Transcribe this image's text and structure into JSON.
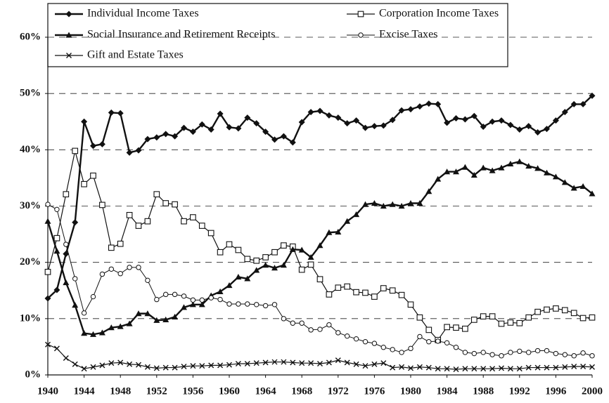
{
  "chart_data": {
    "type": "line",
    "x": [
      1940,
      1941,
      1942,
      1943,
      1944,
      1945,
      1946,
      1947,
      1948,
      1949,
      1950,
      1951,
      1952,
      1953,
      1954,
      1955,
      1956,
      1957,
      1958,
      1959,
      1960,
      1961,
      1962,
      1963,
      1964,
      1965,
      1966,
      1967,
      1968,
      1969,
      1970,
      1971,
      1972,
      1973,
      1974,
      1975,
      1976,
      1977,
      1978,
      1979,
      1980,
      1981,
      1982,
      1983,
      1984,
      1985,
      1986,
      1987,
      1988,
      1989,
      1990,
      1991,
      1992,
      1993,
      1994,
      1995,
      1996,
      1997,
      1998,
      1999,
      2000
    ],
    "xlim": [
      1940,
      2000
    ],
    "xticks": [
      1940,
      1944,
      1948,
      1952,
      1956,
      1960,
      1964,
      1968,
      1972,
      1976,
      1980,
      1984,
      1988,
      1992,
      1996,
      2000
    ],
    "ylim": [
      0,
      60
    ],
    "yticks": [
      {
        "value": 0,
        "label": "0%"
      },
      {
        "value": 10,
        "label": "10%"
      },
      {
        "value": 20,
        "label": "20%"
      },
      {
        "value": 30,
        "label": "30%"
      },
      {
        "value": 40,
        "label": "40%"
      },
      {
        "value": 50,
        "label": "50%"
      },
      {
        "value": 60,
        "label": "60%"
      }
    ],
    "grid": true,
    "series": [
      {
        "name": "Individual Income Taxes",
        "color": "#111111",
        "marker": "diamond",
        "values": [
          13.6,
          15.1,
          21.5,
          27.1,
          45.0,
          40.7,
          41.0,
          46.6,
          46.5,
          39.5,
          39.9,
          41.9,
          42.2,
          42.8,
          42.4,
          43.9,
          43.2,
          44.5,
          43.6,
          46.4,
          44.0,
          43.8,
          45.7,
          44.7,
          43.2,
          41.8,
          42.4,
          41.3,
          44.9,
          46.7,
          46.9,
          46.1,
          45.7,
          44.7,
          45.2,
          43.9,
          44.2,
          44.3,
          45.3,
          47.0,
          47.2,
          47.7,
          48.2,
          48.1,
          44.8,
          45.6,
          45.4,
          46.0,
          44.1,
          45.0,
          45.2,
          44.4,
          43.6,
          44.2,
          43.1,
          43.7,
          45.2,
          46.7,
          48.1,
          48.1,
          49.6
        ]
      },
      {
        "name": "Corporation Income Taxes",
        "color": "#111111",
        "marker": "square-open",
        "values": [
          18.3,
          24.3,
          32.1,
          39.8,
          33.9,
          35.4,
          30.2,
          22.6,
          23.3,
          28.4,
          26.5,
          27.3,
          32.1,
          30.5,
          30.3,
          27.3,
          28.0,
          26.5,
          25.2,
          21.8,
          23.2,
          22.2,
          20.6,
          20.3,
          20.9,
          21.8,
          23.0,
          22.8,
          18.7,
          19.6,
          17.0,
          14.3,
          15.5,
          15.7,
          14.7,
          14.6,
          13.9,
          15.4,
          15.0,
          14.2,
          12.5,
          10.2,
          8.0,
          6.2,
          8.5,
          8.4,
          8.2,
          9.8,
          10.4,
          10.4,
          9.1,
          9.3,
          9.2,
          10.2,
          11.2,
          11.6,
          11.8,
          11.5,
          11.0,
          10.1,
          10.2
        ]
      },
      {
        "name": "Social Insurance and Retirement Receipts",
        "color": "#111111",
        "marker": "triangle",
        "values": [
          27.3,
          22.0,
          16.4,
          12.4,
          7.4,
          7.2,
          7.5,
          8.4,
          8.6,
          9.1,
          10.9,
          10.9,
          9.7,
          9.8,
          10.3,
          12.0,
          12.5,
          12.5,
          14.1,
          14.8,
          15.9,
          17.4,
          17.1,
          18.6,
          19.5,
          19.0,
          19.5,
          22.3,
          22.2,
          20.9,
          23.0,
          25.3,
          25.4,
          27.3,
          28.5,
          30.3,
          30.5,
          30.0,
          30.3,
          30.0,
          30.5,
          30.5,
          32.6,
          34.8,
          36.1,
          36.1,
          36.9,
          35.5,
          36.8,
          36.3,
          36.8,
          37.5,
          37.9,
          37.1,
          36.7,
          35.9,
          35.2,
          34.2,
          33.2,
          33.5,
          32.2
        ]
      },
      {
        "name": "Excise Taxes",
        "color": "#111111",
        "marker": "circle-open",
        "values": [
          30.3,
          29.4,
          23.2,
          17.1,
          11.0,
          13.9,
          17.9,
          18.8,
          18.0,
          19.1,
          19.1,
          16.8,
          13.4,
          14.3,
          14.3,
          14.0,
          13.3,
          13.3,
          13.7,
          13.4,
          12.6,
          12.6,
          12.6,
          12.5,
          12.3,
          12.5,
          10.0,
          9.2,
          9.2,
          8.0,
          8.1,
          8.9,
          7.5,
          6.9,
          6.4,
          5.9,
          5.6,
          4.9,
          4.5,
          4.0,
          4.7,
          6.8,
          5.9,
          6.0,
          5.7,
          4.9,
          4.0,
          3.8,
          4.0,
          3.6,
          3.4,
          4.0,
          4.2,
          4.0,
          4.3,
          4.3,
          3.8,
          3.6,
          3.4,
          3.9,
          3.4
        ]
      },
      {
        "name": "Gift and Estate Taxes",
        "color": "#111111",
        "marker": "x",
        "values": [
          5.4,
          4.7,
          3.0,
          1.9,
          1.1,
          1.4,
          1.7,
          2.1,
          2.2,
          1.9,
          1.8,
          1.4,
          1.2,
          1.3,
          1.3,
          1.5,
          1.6,
          1.6,
          1.7,
          1.7,
          1.8,
          2.0,
          2.0,
          2.1,
          2.2,
          2.3,
          2.3,
          2.2,
          2.1,
          2.1,
          2.0,
          2.2,
          2.6,
          2.2,
          1.9,
          1.6,
          1.9,
          2.1,
          1.3,
          1.4,
          1.2,
          1.4,
          1.3,
          1.1,
          1.1,
          1.0,
          1.1,
          1.1,
          1.1,
          1.1,
          1.2,
          1.1,
          1.1,
          1.3,
          1.3,
          1.3,
          1.3,
          1.4,
          1.5,
          1.5,
          1.4
        ]
      }
    ]
  }
}
